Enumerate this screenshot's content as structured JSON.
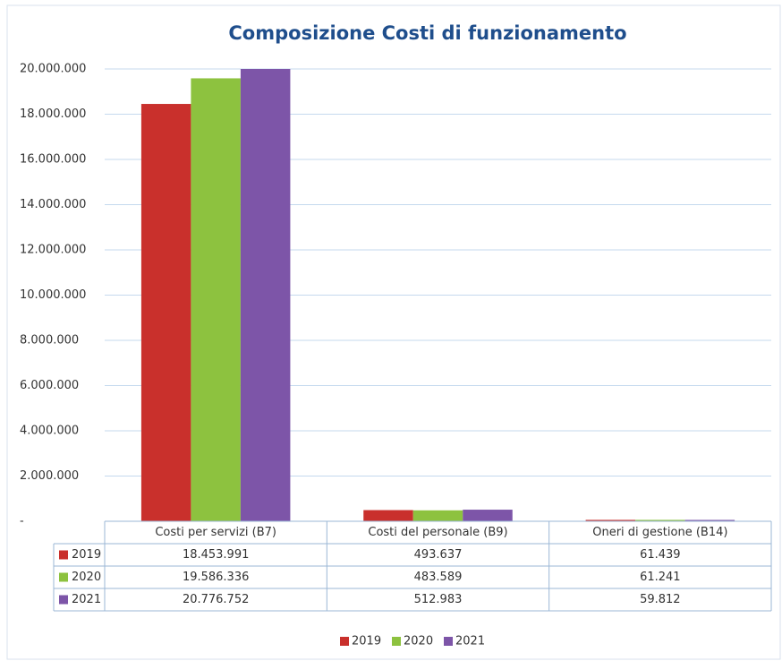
{
  "chart_data": {
    "type": "bar",
    "title": "Composizione Costi di funzionamento",
    "categories": [
      "Costi per servizi (B7)",
      "Costi del personale (B9)",
      "Oneri di gestione (B14)"
    ],
    "series": [
      {
        "name": "2019",
        "color": "#c9302c",
        "values": [
          18453991,
          493637,
          61439
        ],
        "value_labels": [
          "18.453.991",
          "493.637",
          "61.439"
        ]
      },
      {
        "name": "2020",
        "color": "#8dc23f",
        "values": [
          19586336,
          483589,
          61241
        ],
        "value_labels": [
          "19.586.336",
          "483.589",
          "61.241"
        ]
      },
      {
        "name": "2021",
        "color": "#7d55a8",
        "values": [
          20776752,
          512983,
          59812
        ],
        "value_labels": [
          "20.776.752",
          "512.983",
          "59.812"
        ]
      }
    ],
    "ylim": [
      0,
      20000000
    ],
    "yticks": [
      {
        "value": 0,
        "label": "-"
      },
      {
        "value": 2000000,
        "label": "2.000.000"
      },
      {
        "value": 4000000,
        "label": "4.000.000"
      },
      {
        "value": 6000000,
        "label": "6.000.000"
      },
      {
        "value": 8000000,
        "label": "8.000.000"
      },
      {
        "value": 10000000,
        "label": "10.000.000"
      },
      {
        "value": 12000000,
        "label": "12.000.000"
      },
      {
        "value": 14000000,
        "label": "14.000.000"
      },
      {
        "value": 16000000,
        "label": "16.000.000"
      },
      {
        "value": 18000000,
        "label": "18.000.000"
      },
      {
        "value": 20000000,
        "label": "20.000.000"
      }
    ],
    "grid": true,
    "legend": "bottom"
  }
}
